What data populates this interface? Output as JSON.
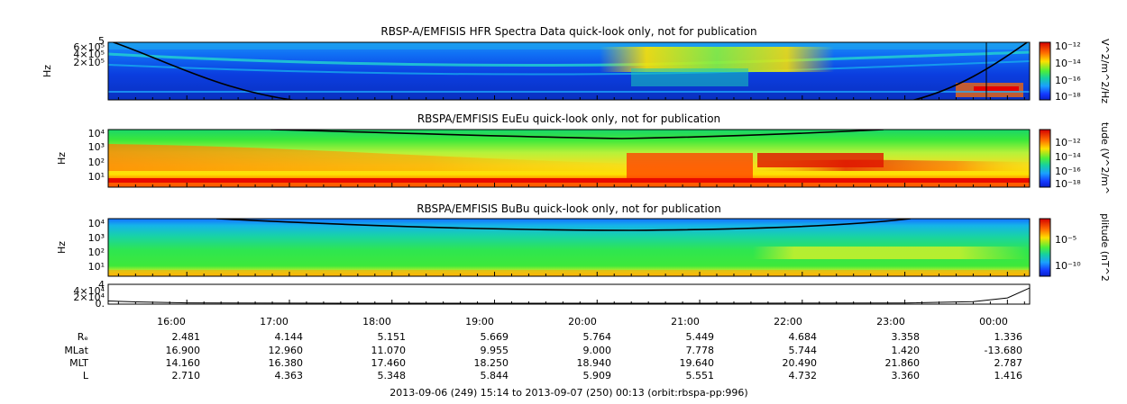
{
  "panels": [
    {
      "title": "RBSP-A/EMFISIS  HFR Spectra Data quick-look only, not for publication",
      "ylabel": "Hz",
      "yticks": [
        "5",
        "6×10⁵",
        "4×10⁵",
        "2×10⁵"
      ],
      "cbar_label": "V^2/m^2/Hz",
      "cbar_ticks": [
        "10⁻¹²",
        "10⁻¹⁴",
        "10⁻¹⁶",
        "10⁻¹⁸"
      ]
    },
    {
      "title": "RBSPA/EMFISIS  EuEu quick-look only, not for publication",
      "ylabel": "Hz",
      "yticks": [
        "10⁴",
        "10³",
        "10²",
        "10¹"
      ],
      "cbar_label": "tude (V^2/m^",
      "cbar_ticks": [
        "10⁻¹²",
        "10⁻¹⁴",
        "10⁻¹⁶",
        "10⁻¹⁸"
      ]
    },
    {
      "title": "RBSPA/EMFISIS  BuBu quick-look only, not for publication",
      "ylabel": "Hz",
      "yticks": [
        "10⁴",
        "10³",
        "10²",
        "10¹"
      ],
      "cbar_label": "plitude (nT^2",
      "cbar_ticks": [
        "10⁻⁵",
        "10⁻¹⁰"
      ]
    }
  ],
  "line_panel": {
    "yticks": [
      "4",
      "4×10⁴",
      "2×10⁴",
      "0."
    ]
  },
  "time_labels": [
    "16:00",
    "17:00",
    "18:00",
    "19:00",
    "20:00",
    "21:00",
    "22:00",
    "23:00",
    "00:00"
  ],
  "ephemeris": [
    {
      "name": "Rₑ",
      "values": [
        "2.481",
        "4.144",
        "5.151",
        "5.669",
        "5.764",
        "5.449",
        "4.684",
        "3.358",
        "1.336"
      ]
    },
    {
      "name": "MLat",
      "values": [
        "16.900",
        "12.960",
        "11.070",
        "9.955",
        "9.000",
        "7.778",
        "5.744",
        "1.420",
        "-13.680"
      ]
    },
    {
      "name": "MLT",
      "values": [
        "14.160",
        "16.380",
        "17.460",
        "18.250",
        "18.940",
        "19.640",
        "20.490",
        "21.860",
        "2.787"
      ]
    },
    {
      "name": "L",
      "values": [
        "2.710",
        "4.363",
        "5.348",
        "5.844",
        "5.909",
        "5.551",
        "4.732",
        "3.360",
        "1.416"
      ]
    }
  ],
  "footer": "2013-09-06 (249) 15:14 to 2013-09-07 (250) 00:13 (orbit:rbspa-pp:996)",
  "chart_data": [
    {
      "type": "heatmap",
      "title": "RBSP-A/EMFISIS  HFR Spectra Data quick-look only, not for publication",
      "ylabel": "Hz",
      "x_range": [
        "2013-09-06 15:14",
        "2013-09-07 00:13"
      ],
      "colorbar": {
        "label": "V^2/m^2/Hz",
        "ticks": [
          "1e-12",
          "1e-14",
          "1e-16",
          "1e-18"
        ]
      }
    },
    {
      "type": "heatmap",
      "title": "RBSPA/EMFISIS  EuEu quick-look only, not for publication",
      "ylabel": "Hz",
      "y_scale": "log",
      "colorbar": {
        "label": "tude (V^2/m^",
        "ticks": [
          "1e-12",
          "1e-14",
          "1e-16",
          "1e-18"
        ]
      }
    },
    {
      "type": "heatmap",
      "title": "RBSPA/EMFISIS  BuBu quick-look only, not for publication",
      "ylabel": "Hz",
      "y_scale": "log",
      "colorbar": {
        "label": "plitude (nT^2",
        "ticks": [
          "1e-5",
          "1e-10"
        ]
      }
    },
    {
      "type": "line",
      "x": [
        "15:14",
        "15:30",
        "16:00",
        "17:00",
        "18:00",
        "19:00",
        "20:00",
        "21:00",
        "22:00",
        "23:00",
        "23:40",
        "00:00",
        "00:13"
      ],
      "y": [
        6000,
        3500,
        900,
        300,
        100,
        50,
        40,
        50,
        200,
        800,
        4000,
        14000,
        40000
      ],
      "ylim": [
        0,
        45000
      ]
    }
  ],
  "colors": {
    "background_field": "#0a3fd8",
    "cold": "#1434ff",
    "mid": "#22e04a",
    "warm": "#ffd400",
    "hot": "#e62000"
  }
}
